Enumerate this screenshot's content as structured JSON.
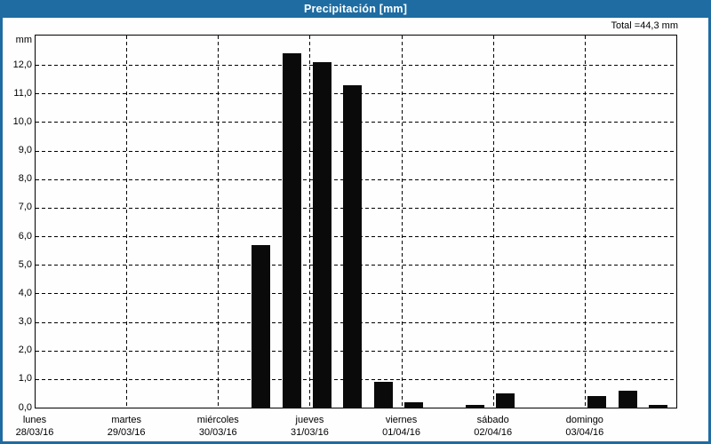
{
  "window": {
    "title": "Precipitación [mm]"
  },
  "colors": {
    "titlebar": "#1E6CA2",
    "frame": "#1E6CA2",
    "title_text": "#FFFFFF",
    "panel_background": "#FDFEFD",
    "bar": "#0A0A0A",
    "grid": "#000000",
    "text": "#000000"
  },
  "chart_data": {
    "type": "bar",
    "title": "Precipitación [mm]",
    "total_label": "Total =44,3 mm",
    "total_mm": 44.3,
    "ylabel": "mm",
    "ylim": [
      0,
      13
    ],
    "ytick_step": 1.0,
    "ytick_values": [
      0,
      1,
      2,
      3,
      4,
      5,
      6,
      7,
      8,
      9,
      10,
      11,
      12
    ],
    "ytick_labels": [
      "0,0",
      "1,0",
      "2,0",
      "3,0",
      "4,0",
      "5,0",
      "6,0",
      "7,0",
      "8,0",
      "9,0",
      "10,0",
      "11,0",
      "12,0"
    ],
    "grid": "dashed",
    "legend": "none",
    "periods_per_day": 3,
    "days": [
      {
        "name": "lunes",
        "date": "28/03/16",
        "values": [
          0,
          0,
          0
        ]
      },
      {
        "name": "martes",
        "date": "29/03/16",
        "values": [
          0,
          0,
          0
        ]
      },
      {
        "name": "miércoles",
        "date": "30/03/16",
        "values": [
          0,
          5.7,
          12.4
        ]
      },
      {
        "name": "jueves",
        "date": "31/03/16",
        "values": [
          12.1,
          11.3,
          0.9
        ]
      },
      {
        "name": "viernes",
        "date": "01/04/16",
        "values": [
          0.2,
          0,
          0.1
        ]
      },
      {
        "name": "sábado",
        "date": "02/04/16",
        "values": [
          0.5,
          0,
          0
        ]
      },
      {
        "name": "domingo",
        "date": "03/04/16",
        "values": [
          0.4,
          0.6,
          0.1
        ]
      }
    ]
  }
}
